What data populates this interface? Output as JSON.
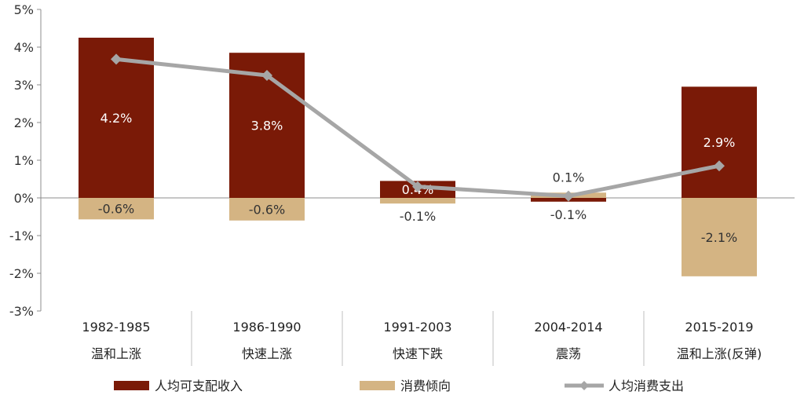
{
  "chart_data": {
    "type": "bar",
    "title": "",
    "xlabel": "",
    "ylabel": "",
    "ylim": [
      -3,
      5
    ],
    "ytick_step": 1,
    "ytick_format": "percent",
    "grid": false,
    "legend_placement": "bottom",
    "categories": [
      "1982-1985",
      "1986-1990",
      "1991-2003",
      "2004-2014",
      "2015-2019"
    ],
    "category_phases": [
      "温和上涨",
      "快速上涨",
      "快速下跌",
      "震荡",
      "温和上涨(反弹)"
    ],
    "series": [
      {
        "name": "人均可支配收入",
        "kind": "bar",
        "color": "#7a1a07",
        "values": [
          4.25,
          3.85,
          0.45,
          -0.1,
          2.95
        ],
        "labels": [
          "4.2%",
          "3.8%",
          "0.4%",
          "-0.1%",
          "2.9%"
        ]
      },
      {
        "name": "消费倾向",
        "kind": "bar",
        "color": "#d4b483",
        "values": [
          -0.57,
          -0.6,
          -0.15,
          0.14,
          -2.08
        ],
        "labels": [
          "-0.6%",
          "-0.6%",
          "-0.1%",
          "0.1%",
          "-2.1%"
        ]
      },
      {
        "name": "人均消费支出",
        "kind": "line",
        "color": "#a6a6a6",
        "values": [
          3.68,
          3.25,
          0.3,
          0.05,
          0.85
        ]
      }
    ]
  }
}
